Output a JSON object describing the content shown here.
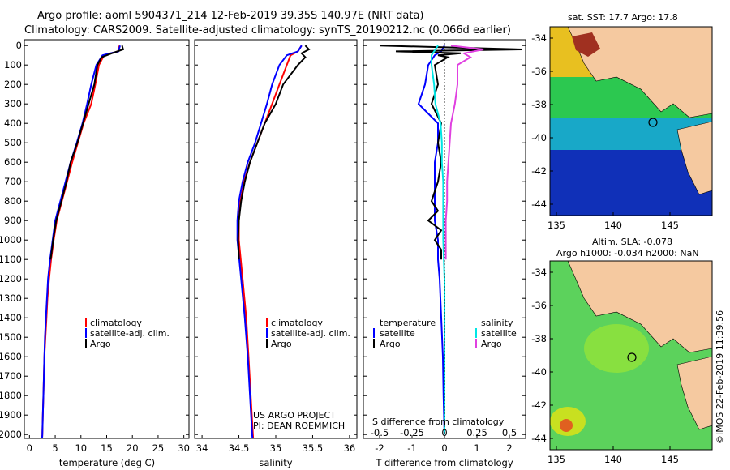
{
  "title": {
    "line1": "Argo profile: aoml 5904371_214 12-Feb-2019 39.35S 140.97E (NRT data)",
    "line2": "Climatology: CARS2009. Satellite-adjusted climatology: synTS_20190212.nc (0.066d earlier)"
  },
  "depth_ticks": [
    0,
    100,
    200,
    300,
    400,
    500,
    600,
    700,
    800,
    900,
    1000,
    1100,
    1200,
    1300,
    1400,
    1500,
    1600,
    1700,
    1800,
    1900,
    2000
  ],
  "colors": {
    "climatology": "#ff0000",
    "satellite": "#0000ff",
    "argo": "#000000",
    "sat_salinity": "#00e5e5",
    "argo_salinity": "#e040e0"
  },
  "temperature_panel": {
    "xlabel": "temperature (deg C)",
    "x_ticks": [
      "0",
      "5",
      "10",
      "15",
      "20",
      "25",
      "30"
    ],
    "legend": [
      "climatology",
      "satellite-adj. clim.",
      "Argo"
    ]
  },
  "salinity_panel": {
    "xlabel": "salinity",
    "x_ticks": [
      "34",
      "34.5",
      "35",
      "35.5",
      "36"
    ],
    "legend": [
      "climatology",
      "satellite-adj. clim.",
      "Argo"
    ],
    "credit1": "US ARGO PROJECT",
    "credit2": "PI: DEAN ROEMMICH"
  },
  "difference_panel": {
    "xlabel": "T difference from climatology",
    "x_ticks": [
      "-2",
      "-1",
      "0",
      "1",
      "2"
    ],
    "s_label": "S difference from climatology",
    "s_ticks": [
      "-0.5",
      "-0.25",
      "0",
      "0.25",
      "0.5"
    ],
    "legend_temp_header": "temperature",
    "legend_sal_header": "salinity",
    "legend_temp": [
      "satellite",
      "Argo"
    ],
    "legend_sal": [
      "satellite",
      "Argo"
    ]
  },
  "sst_map": {
    "title": "sat. SST: 17.7 Argo: 17.8",
    "lat_ticks": [
      "-34",
      "-36",
      "-38",
      "-40",
      "-42",
      "-44"
    ],
    "lon_ticks": [
      "135",
      "140",
      "145"
    ]
  },
  "sla_map": {
    "title1": "Altim. SLA: -0.078",
    "title2": "Argo h1000: -0.034 h2000: NaN",
    "lat_ticks": [
      "-34",
      "-36",
      "-38",
      "-40",
      "-42",
      "-44"
    ],
    "lon_ticks": [
      "135",
      "140",
      "145"
    ],
    "watermark": "©IMOS 22-Feb-2019 11:39:56"
  },
  "chart_data": [
    {
      "type": "line",
      "title": "",
      "xlabel": "temperature (deg C)",
      "ylabel": "",
      "xlim": [
        -1,
        31
      ],
      "ylim": [
        2050,
        0
      ],
      "series": [
        {
          "name": "climatology",
          "depth": [
            0,
            30,
            50,
            100,
            200,
            300,
            400,
            500,
            600,
            700,
            800,
            900,
            1000,
            1100,
            1200,
            1300,
            1400,
            1500,
            1600,
            1700,
            1800,
            1900,
            2000,
            2050
          ],
          "values": [
            17.5,
            17.2,
            14.5,
            13.5,
            12.8,
            12.0,
            10.5,
            9.4,
            8.3,
            7.3,
            6.3,
            5.3,
            4.7,
            4.2,
            3.8,
            3.5,
            3.3,
            3.1,
            2.9,
            2.8,
            2.7,
            2.6,
            2.5,
            2.4
          ]
        },
        {
          "name": "satellite-adj. clim.",
          "depth": [
            0,
            30,
            50,
            100,
            200,
            300,
            400,
            500,
            600,
            700,
            800,
            900,
            1000,
            1100,
            1200,
            1300,
            1400,
            1500,
            1600,
            1700,
            1800,
            1900,
            2000,
            2050
          ],
          "values": [
            17.6,
            17.3,
            14.2,
            13.0,
            12.0,
            11.2,
            10.3,
            9.2,
            8.0,
            7.0,
            6.0,
            5.0,
            4.5,
            4.0,
            3.6,
            3.4,
            3.2,
            3.0,
            2.9,
            2.8,
            2.7,
            2.6,
            2.5,
            2.4
          ]
        },
        {
          "name": "Argo",
          "depth": [
            0,
            20,
            40,
            60,
            100,
            200,
            300,
            400,
            500,
            600,
            700,
            800,
            900,
            1000,
            1100
          ],
          "values": [
            18.0,
            18.2,
            16.0,
            14.0,
            13.2,
            12.6,
            11.5,
            10.4,
            9.3,
            8.0,
            7.2,
            6.2,
            5.2,
            4.6,
            4.1
          ]
        }
      ]
    },
    {
      "type": "line",
      "title": "",
      "xlabel": "salinity",
      "ylabel": "",
      "xlim": [
        33.9,
        36.1
      ],
      "ylim": [
        2050,
        0
      ],
      "series": [
        {
          "name": "climatology",
          "depth": [
            0,
            30,
            50,
            100,
            200,
            300,
            400,
            500,
            600,
            700,
            800,
            900,
            1000,
            1200,
            1400,
            1600,
            1800,
            2000,
            2050
          ],
          "values": [
            35.35,
            35.3,
            35.2,
            35.15,
            35.05,
            34.95,
            34.85,
            34.75,
            34.65,
            34.57,
            34.52,
            34.5,
            34.5,
            34.55,
            34.6,
            34.63,
            34.66,
            34.69,
            34.7
          ]
        },
        {
          "name": "satellite-adj. clim.",
          "depth": [
            0,
            30,
            50,
            100,
            200,
            300,
            400,
            500,
            600,
            700,
            800,
            900,
            1000,
            1200,
            1400,
            1600,
            1800,
            2000,
            2050
          ],
          "values": [
            35.35,
            35.3,
            35.15,
            35.05,
            34.95,
            34.88,
            34.8,
            34.72,
            34.62,
            34.55,
            34.5,
            34.48,
            34.48,
            34.53,
            34.58,
            34.62,
            34.65,
            34.68,
            34.69
          ]
        },
        {
          "name": "Argo",
          "depth": [
            0,
            20,
            40,
            60,
            100,
            200,
            300,
            400,
            500,
            600,
            700,
            800,
            900,
            1000,
            1100
          ],
          "values": [
            35.4,
            35.45,
            35.35,
            35.4,
            35.3,
            35.1,
            35.0,
            34.85,
            34.75,
            34.65,
            34.58,
            34.53,
            34.5,
            34.49,
            34.5
          ]
        }
      ]
    },
    {
      "type": "line",
      "title": "",
      "xlabel": "T difference from climatology",
      "ylabel": "",
      "xlim": [
        -2.5,
        2.5
      ],
      "ylim": [
        2050,
        0
      ],
      "series": [
        {
          "name": "temperature satellite",
          "depth": [
            0,
            30,
            50,
            100,
            200,
            300,
            400,
            500,
            600,
            700,
            800,
            900,
            1000,
            1100,
            1200,
            1400,
            1600,
            1800,
            2000
          ],
          "values": [
            0,
            -0.1,
            -0.3,
            -0.5,
            -0.6,
            -0.8,
            -0.2,
            -0.2,
            -0.3,
            -0.3,
            -0.3,
            -0.3,
            -0.2,
            -0.2,
            -0.15,
            -0.1,
            -0.05,
            -0.03,
            0
          ]
        },
        {
          "name": "temperature Argo",
          "depth": [
            0,
            20,
            30,
            40,
            50,
            60,
            100,
            200,
            300,
            400,
            500,
            600,
            700,
            800,
            850,
            900,
            950,
            1000,
            1050,
            1100
          ],
          "values": [
            -2,
            2.4,
            -1.5,
            0.5,
            -0.2,
            0.1,
            -0.3,
            -0.2,
            -0.4,
            -0.1,
            -0.2,
            -0.1,
            -0.2,
            -0.4,
            -0.2,
            -0.5,
            -0.1,
            -0.3,
            -0.1,
            -0.1
          ]
        },
        {
          "name": "salinity satellite",
          "depth": [
            0,
            50,
            100,
            200,
            300,
            400,
            500,
            600,
            700,
            800,
            900,
            1000,
            1200,
            1400,
            1600,
            1800,
            2000
          ],
          "values": [
            -0.05,
            -0.1,
            -0.1,
            -0.08,
            -0.07,
            -0.03,
            -0.02,
            -0.02,
            -0.01,
            -0.01,
            -0.01,
            -0.01,
            0,
            0,
            0,
            0,
            0
          ]
        },
        {
          "name": "salinity Argo",
          "depth": [
            0,
            20,
            40,
            60,
            100,
            200,
            300,
            400,
            500,
            600,
            700,
            800,
            900,
            1000,
            1100
          ],
          "values": [
            0.05,
            0.3,
            0.15,
            0.2,
            0.1,
            0.1,
            0.08,
            0.05,
            0.04,
            0.03,
            0.02,
            0.02,
            0.01,
            0.01,
            0.01
          ]
        }
      ]
    }
  ]
}
